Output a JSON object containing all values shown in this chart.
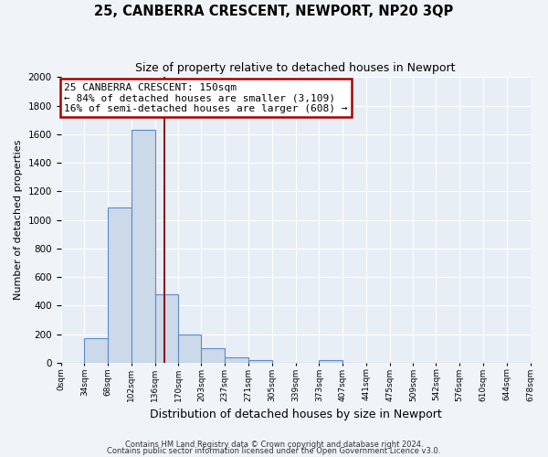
{
  "title": "25, CANBERRA CRESCENT, NEWPORT, NP20 3QP",
  "subtitle": "Size of property relative to detached houses in Newport",
  "xlabel": "Distribution of detached houses by size in Newport",
  "ylabel": "Number of detached properties",
  "bar_color": "#ccd9e8",
  "bar_edge_color": "#5b8cc8",
  "fig_background_color": "#f0f4f8",
  "axes_background_color": "#e8eef5",
  "grid_color": "#ffffff",
  "bin_edges": [
    0,
    34,
    68,
    102,
    136,
    170,
    203,
    237,
    271,
    305,
    339,
    373,
    407,
    441,
    475,
    509,
    542,
    576,
    610,
    644,
    678
  ],
  "bin_labels": [
    "0sqm",
    "34sqm",
    "68sqm",
    "102sqm",
    "136sqm",
    "170sqm",
    "203sqm",
    "237sqm",
    "271sqm",
    "305sqm",
    "339sqm",
    "373sqm",
    "407sqm",
    "441sqm",
    "475sqm",
    "509sqm",
    "542sqm",
    "576sqm",
    "610sqm",
    "644sqm",
    "678sqm"
  ],
  "counts": [
    0,
    170,
    1090,
    1630,
    480,
    200,
    100,
    35,
    20,
    0,
    0,
    15,
    0,
    0,
    0,
    0,
    0,
    0,
    0,
    0
  ],
  "red_line_x": 150,
  "annotation_title": "25 CANBERRA CRESCENT: 150sqm",
  "annotation_line1": "← 84% of detached houses are smaller (3,109)",
  "annotation_line2": "16% of semi-detached houses are larger (608) →",
  "annotation_box_color": "#ffffff",
  "annotation_box_edge_color": "#aa0000",
  "red_line_color": "#8b1a1a",
  "ylim": [
    0,
    2000
  ],
  "yticks": [
    0,
    200,
    400,
    600,
    800,
    1000,
    1200,
    1400,
    1600,
    1800,
    2000
  ],
  "footer1": "Contains HM Land Registry data © Crown copyright and database right 2024.",
  "footer2": "Contains public sector information licensed under the Open Government Licence v3.0."
}
